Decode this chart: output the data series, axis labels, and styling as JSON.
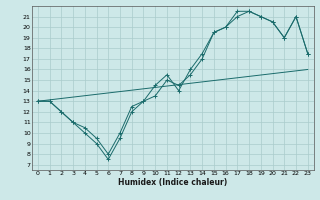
{
  "xlabel": "Humidex (Indice chaleur)",
  "xlim": [
    -0.5,
    23.5
  ],
  "ylim": [
    6.5,
    22
  ],
  "yticks": [
    7,
    8,
    9,
    10,
    11,
    12,
    13,
    14,
    15,
    16,
    17,
    18,
    19,
    20,
    21
  ],
  "xticks": [
    0,
    1,
    2,
    3,
    4,
    5,
    6,
    7,
    8,
    9,
    10,
    11,
    12,
    13,
    14,
    15,
    16,
    17,
    18,
    19,
    20,
    21,
    22,
    23
  ],
  "background_color": "#cde8e8",
  "grid_color": "#aacccc",
  "line_color": "#1a6b6b",
  "curve1_x": [
    0,
    1,
    2,
    3,
    4,
    5,
    6,
    7,
    8,
    9,
    10,
    11,
    12,
    13,
    14,
    15,
    16,
    17,
    18,
    19,
    20,
    21,
    22,
    23
  ],
  "curve1_y": [
    13,
    13,
    12,
    11,
    10,
    9,
    7.5,
    9.5,
    12,
    13,
    14.5,
    15.5,
    14,
    16,
    17.5,
    19.5,
    20,
    21.5,
    21.5,
    21,
    20.5,
    19,
    21,
    17.5
  ],
  "curve2_x": [
    0,
    1,
    2,
    3,
    4,
    5,
    6,
    7,
    8,
    9,
    10,
    11,
    12,
    13,
    14,
    15,
    16,
    17,
    18,
    19,
    20,
    21,
    22,
    23
  ],
  "curve2_y": [
    13,
    13,
    12,
    11,
    10.5,
    9.5,
    8,
    10,
    12.5,
    13,
    13.5,
    15,
    14.5,
    15.5,
    17,
    19.5,
    20,
    21,
    21.5,
    21,
    20.5,
    19,
    21,
    17.5
  ],
  "trend_x": [
    0,
    23
  ],
  "trend_y": [
    13,
    16
  ]
}
